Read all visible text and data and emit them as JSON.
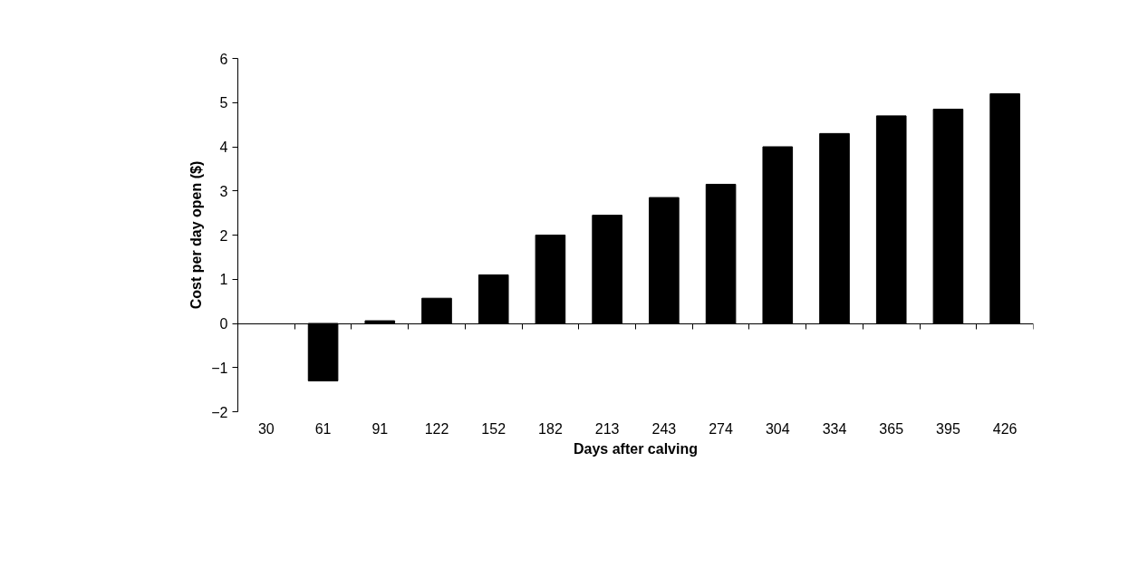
{
  "chart_data": {
    "type": "bar",
    "xlabel": "Days after calving",
    "ylabel": "Cost per day open ($)",
    "categories": [
      "30",
      "61",
      "91",
      "122",
      "152",
      "182",
      "213",
      "243",
      "274",
      "304",
      "334",
      "365",
      "395",
      "426"
    ],
    "values": [
      null,
      -1.3,
      0.06,
      0.57,
      1.1,
      2.0,
      2.45,
      2.85,
      3.15,
      4.0,
      4.3,
      4.7,
      4.85,
      5.2
    ],
    "color": "#000000",
    "ylim": [
      -2,
      6
    ],
    "yticks": [
      -2,
      -1,
      0,
      1,
      2,
      3,
      4,
      5,
      6
    ]
  }
}
